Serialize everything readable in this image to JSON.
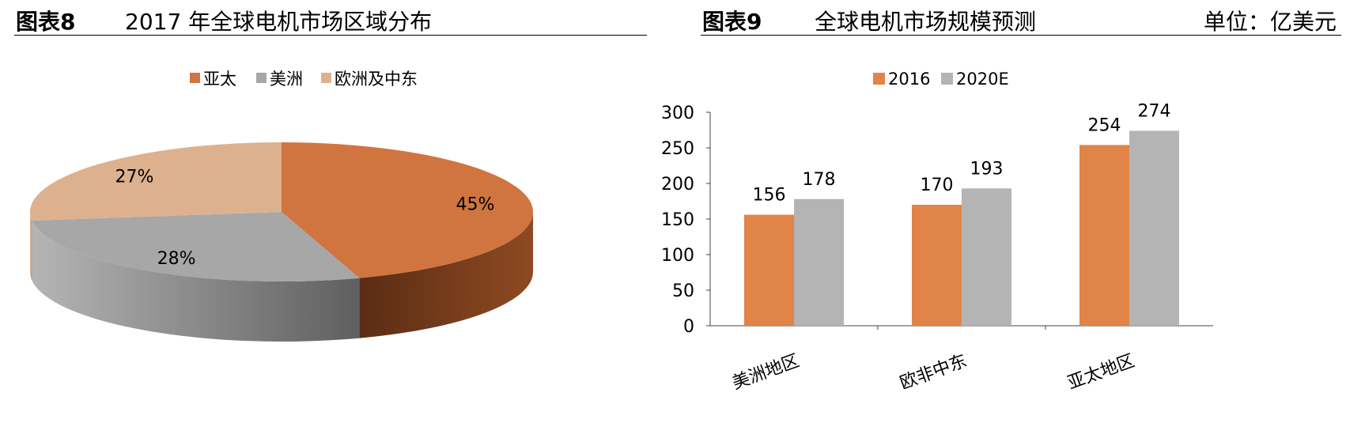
{
  "left": {
    "fig_no": "图表8",
    "title": "2017 年全球电机市场区域分布"
  },
  "right": {
    "fig_no": "图表9",
    "title": "全球电机市场规模预测",
    "unit": "单位：亿美元"
  },
  "chart_data": [
    {
      "type": "pie",
      "title": "",
      "legend_position": "top",
      "slices": [
        {
          "label": "亚太",
          "value": 45,
          "label_text": "45%",
          "color": "#d07540",
          "side_dark": "#5a2c14",
          "side_light": "#8e4a22"
        },
        {
          "label": "美洲",
          "value": 28,
          "label_text": "28%",
          "color": "#a7a7a7",
          "side_dark": "#5f5f5f",
          "side_light": "#b5b5b5"
        },
        {
          "label": "欧洲及中东",
          "value": 27,
          "label_text": "27%",
          "color": "#ddb18e",
          "side_dark": "#b88e6e",
          "side_light": "#e6c2a6"
        }
      ]
    },
    {
      "type": "bar",
      "title": "",
      "legend_position": "top",
      "categories": [
        "美洲地区",
        "欧非中东",
        "亚太地区"
      ],
      "series": [
        {
          "name": "2016",
          "values": [
            156,
            170,
            254
          ],
          "color": "#e08447"
        },
        {
          "name": "2020E",
          "values": [
            178,
            193,
            274
          ],
          "color": "#b4b4b4"
        }
      ],
      "ylim": [
        0,
        300
      ],
      "yticks": [
        "0",
        "50",
        "100",
        "150",
        "200",
        "250",
        "300"
      ],
      "grid": false,
      "xlabel": "",
      "ylabel": ""
    }
  ]
}
